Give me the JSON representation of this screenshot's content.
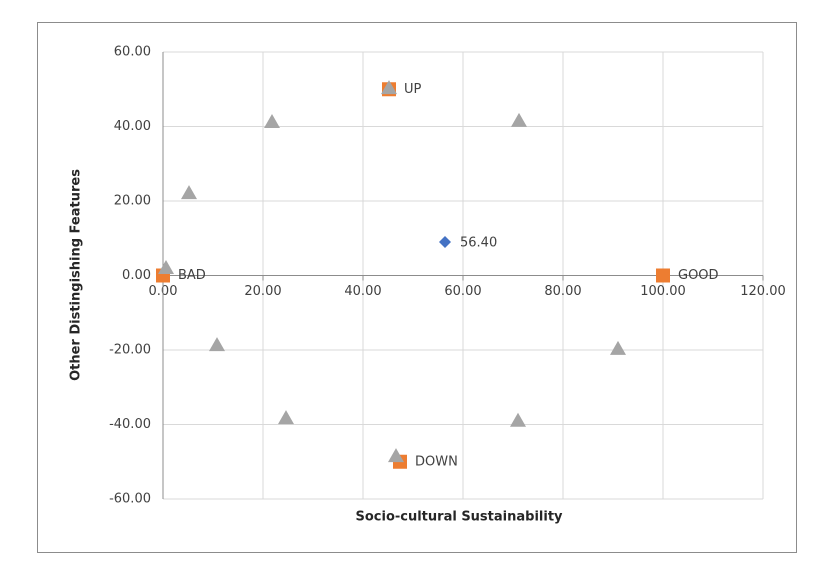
{
  "chart_data": {
    "type": "scatter",
    "xlabel": "Socio-cultural  Sustainability",
    "ylabel": "Other Distingishing Features",
    "xlim": [
      0,
      120
    ],
    "ylim": [
      -60,
      60
    ],
    "xticks": [
      {
        "value": 0,
        "label": "0.00"
      },
      {
        "value": 20,
        "label": "20.00"
      },
      {
        "value": 40,
        "label": "40.00"
      },
      {
        "value": 60,
        "label": "60.00"
      },
      {
        "value": 80,
        "label": "80.00"
      },
      {
        "value": 100,
        "label": "100.00"
      },
      {
        "value": 120,
        "label": "120.00"
      }
    ],
    "yticks": [
      {
        "value": -60,
        "label": "-60.00"
      },
      {
        "value": -40,
        "label": "-40.00"
      },
      {
        "value": -20,
        "label": "-20.00"
      },
      {
        "value": 0,
        "label": "0.00"
      },
      {
        "value": 20,
        "label": "20.00"
      },
      {
        "value": 40,
        "label": "40.00"
      },
      {
        "value": 60,
        "label": "60.00"
      }
    ],
    "grid": true,
    "series": [
      {
        "marker": "square",
        "color": "#ed7d31",
        "x": [
          0,
          100,
          45.2,
          47.4
        ],
        "y": [
          0,
          0,
          50,
          -50
        ],
        "point_labels": [
          "BAD",
          "GOOD",
          "UP",
          "DOWN"
        ]
      },
      {
        "marker": "triangle",
        "color": "#a5a5a5",
        "x": [
          0.6,
          5.2,
          21.8,
          45.2,
          71.2,
          10.8,
          24.6,
          46.6,
          71,
          91
        ],
        "y": [
          2,
          22.1,
          41.2,
          50.3,
          41.5,
          -18.7,
          -38.3,
          -48.5,
          -39,
          -19.7
        ]
      },
      {
        "marker": "diamond",
        "color": "#4472c4",
        "x": [
          56.4
        ],
        "y": [
          9
        ],
        "value_labels": [
          "56.40"
        ]
      }
    ]
  }
}
